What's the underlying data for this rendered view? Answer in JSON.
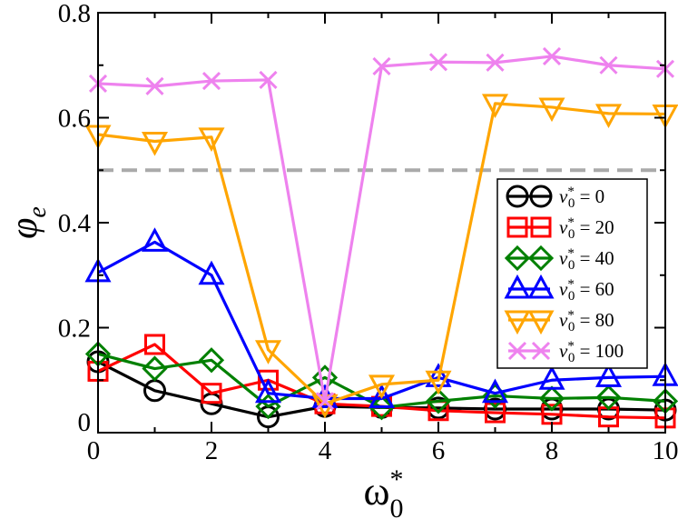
{
  "chart_data": {
    "type": "line",
    "x": [
      0,
      1,
      2,
      3,
      4,
      5,
      6,
      7,
      8,
      9,
      10
    ],
    "xlim": [
      0,
      10
    ],
    "ylim": [
      0,
      0.8
    ],
    "xticks": [
      "0",
      "2",
      "4",
      "6",
      "8",
      "10"
    ],
    "yticks": [
      "0",
      "0.2",
      "0.4",
      "0.6",
      "0.8"
    ],
    "xlabel": {
      "base": "ω",
      "sup": "*",
      "sub": "0"
    },
    "ylabel": {
      "base": "φ",
      "sub": "e"
    },
    "reference_line": {
      "y": 0.5,
      "color": "#aaaaaa",
      "style": "dashed"
    },
    "legend_position": "right",
    "series": [
      {
        "name": "v0* = 0",
        "label_value": "0",
        "marker": "circle",
        "color": "#000000",
        "values": [
          0.135,
          0.08,
          0.055,
          0.03,
          0.05,
          0.048,
          0.047,
          0.045,
          0.045,
          0.045,
          0.043
        ]
      },
      {
        "name": "v0* = 20",
        "label_value": "20",
        "marker": "square",
        "color": "#ff0000",
        "values": [
          0.117,
          0.168,
          0.075,
          0.1,
          0.055,
          0.05,
          0.042,
          0.038,
          0.035,
          0.03,
          0.028
        ]
      },
      {
        "name": "v0* = 40",
        "label_value": "40",
        "marker": "diamond",
        "color": "#008000",
        "values": [
          0.15,
          0.122,
          0.138,
          0.05,
          0.105,
          0.048,
          0.06,
          0.07,
          0.065,
          0.067,
          0.06
        ]
      },
      {
        "name": "v0* = 60",
        "label_value": "60",
        "marker": "triangle-up",
        "color": "#0000ff",
        "values": [
          0.305,
          0.363,
          0.3,
          0.075,
          0.065,
          0.065,
          0.105,
          0.075,
          0.1,
          0.105,
          0.107
        ]
      },
      {
        "name": "v0* = 80",
        "label_value": "80",
        "marker": "triangle-down",
        "color": "#ffa500",
        "values": [
          0.568,
          0.555,
          0.563,
          0.158,
          0.055,
          0.092,
          0.1,
          0.627,
          0.62,
          0.608,
          0.607
        ]
      },
      {
        "name": "v0* = 100",
        "label_value": "100",
        "marker": "x",
        "color": "#ee82ee",
        "values": [
          0.665,
          0.66,
          0.67,
          0.672,
          0.06,
          0.698,
          0.706,
          0.705,
          0.717,
          0.7,
          0.693
        ]
      }
    ]
  }
}
